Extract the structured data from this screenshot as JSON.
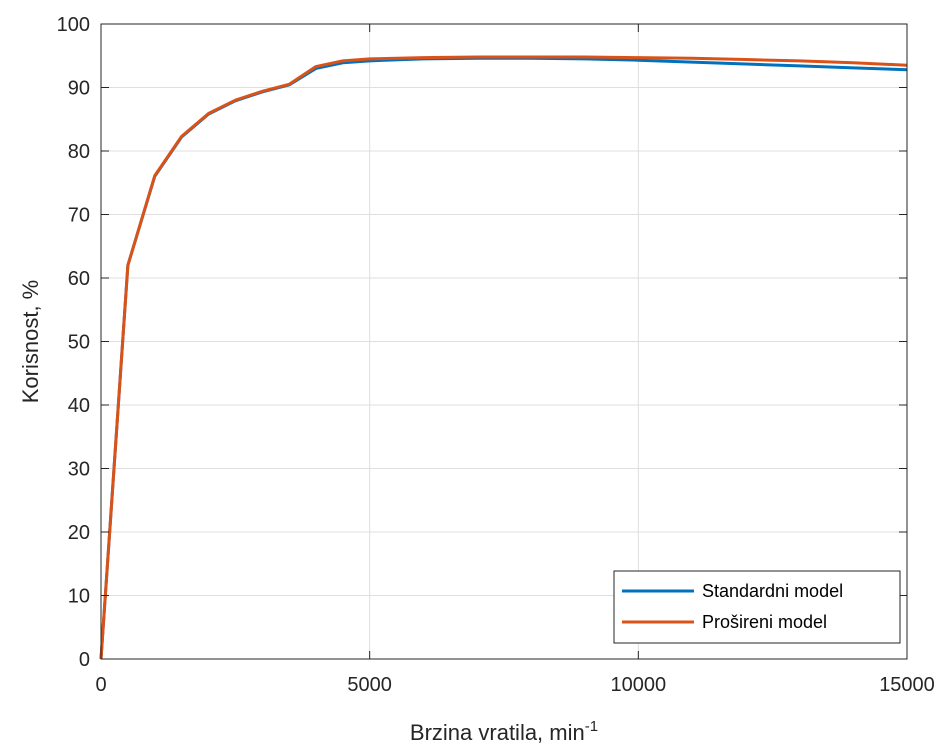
{
  "chart_data": {
    "type": "line",
    "title": "",
    "xlabel": "Brzina vratila, min",
    "xlabel_superscript": "-1",
    "ylabel": "Korisnost, %",
    "xlim": [
      0,
      15000
    ],
    "ylim": [
      0,
      100
    ],
    "xticks": [
      0,
      5000,
      10000,
      15000
    ],
    "yticks": [
      0,
      10,
      20,
      30,
      40,
      50,
      60,
      70,
      80,
      90,
      100
    ],
    "xtick_labels": [
      "0",
      "5000",
      "10000",
      "15000"
    ],
    "ytick_labels": [
      "0",
      "10",
      "20",
      "30",
      "40",
      "50",
      "60",
      "70",
      "80",
      "90",
      "100"
    ],
    "grid": true,
    "legend_position": "bottom-right",
    "series": [
      {
        "name": "Standardni model",
        "color": "#0072BD",
        "points": [
          [
            0,
            0
          ],
          [
            500,
            62
          ],
          [
            1000,
            76
          ],
          [
            1500,
            82.2
          ],
          [
            2000,
            85.8
          ],
          [
            2500,
            87.9
          ],
          [
            3000,
            89.3
          ],
          [
            3500,
            90.4
          ],
          [
            4000,
            93.0
          ],
          [
            4500,
            93.9
          ],
          [
            5000,
            94.2
          ],
          [
            6000,
            94.5
          ],
          [
            7000,
            94.6
          ],
          [
            8000,
            94.6
          ],
          [
            9000,
            94.5
          ],
          [
            10000,
            94.3
          ],
          [
            11000,
            94.0
          ],
          [
            12000,
            93.7
          ],
          [
            13000,
            93.4
          ],
          [
            14000,
            93.1
          ],
          [
            15000,
            92.8
          ]
        ]
      },
      {
        "name": "Prošireni model",
        "color": "#D95319",
        "points": [
          [
            0,
            0
          ],
          [
            500,
            62
          ],
          [
            1000,
            76.1
          ],
          [
            1500,
            82.3
          ],
          [
            2000,
            85.9
          ],
          [
            2500,
            88.0
          ],
          [
            3000,
            89.4
          ],
          [
            3500,
            90.5
          ],
          [
            4000,
            93.3
          ],
          [
            4500,
            94.2
          ],
          [
            5000,
            94.5
          ],
          [
            6000,
            94.7
          ],
          [
            7000,
            94.8
          ],
          [
            8000,
            94.8
          ],
          [
            9000,
            94.8
          ],
          [
            10000,
            94.7
          ],
          [
            11000,
            94.6
          ],
          [
            12000,
            94.4
          ],
          [
            13000,
            94.2
          ],
          [
            14000,
            93.9
          ],
          [
            15000,
            93.5
          ]
        ]
      }
    ]
  }
}
